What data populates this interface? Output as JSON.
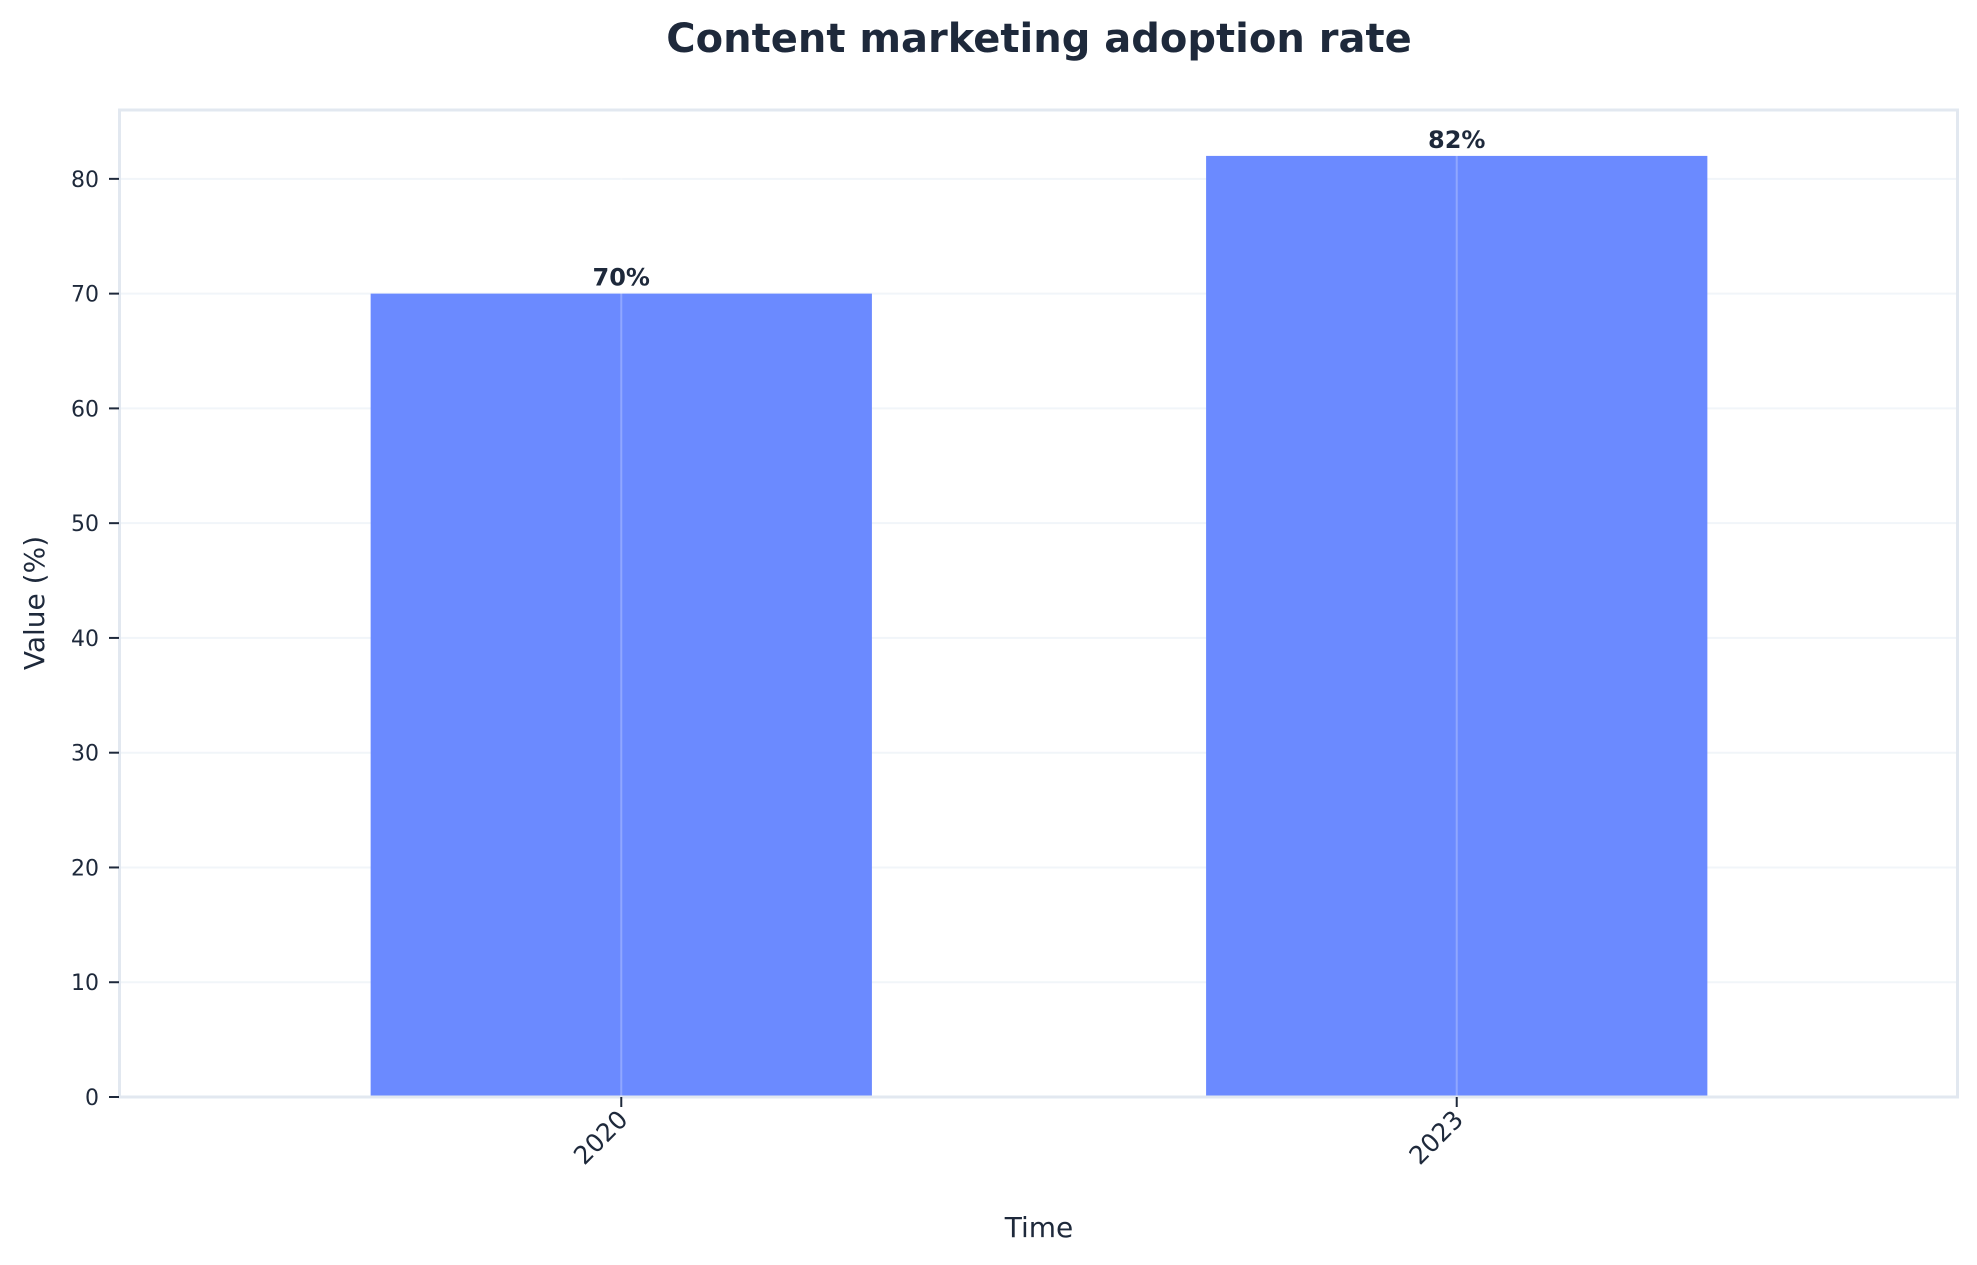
{
  "chart_data": {
    "type": "bar",
    "title": "Content marketing adoption rate",
    "xlabel": "Time",
    "ylabel": "Value (%)",
    "categories": [
      "2020",
      "2023"
    ],
    "values": [
      70,
      82
    ],
    "value_labels": [
      "70%",
      "82%"
    ],
    "ylim": [
      0,
      86
    ],
    "yticks": [
      0,
      10,
      20,
      30,
      40,
      50,
      60,
      70,
      80
    ],
    "xtick_rotation": 45,
    "grid": true,
    "legend": null,
    "colors": {
      "bar": "#6b8aff",
      "text": "#1e293b",
      "spine": "#e2e8f0",
      "grid": "#f1f5f9",
      "background": "#ffffff"
    }
  }
}
